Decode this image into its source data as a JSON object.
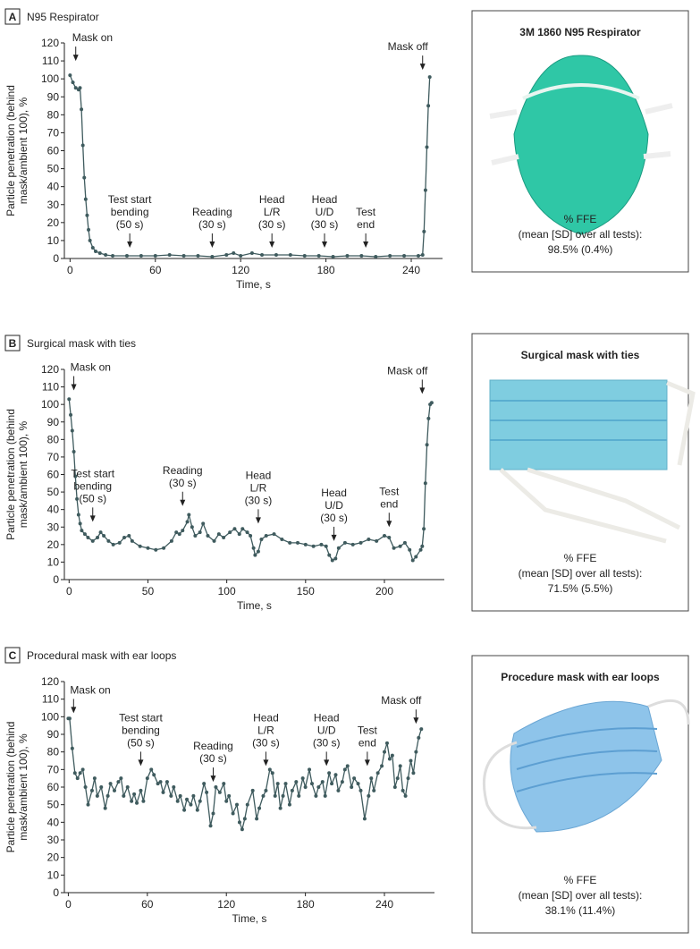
{
  "chart_data": [
    {
      "type": "line",
      "label": "A",
      "title": "N95 Respirator",
      "ylabel": [
        "Particle penetration (behind",
        "mask/ambient 100), %"
      ],
      "xlabel": "Time, s",
      "color": "#3f5b5e",
      "x": [
        0,
        2,
        4,
        6,
        7,
        8,
        9,
        10,
        11,
        12,
        13,
        14,
        16,
        18,
        21,
        25,
        30,
        40,
        50,
        60,
        70,
        80,
        90,
        100,
        110,
        115,
        120,
        128,
        135,
        145,
        155,
        165,
        175,
        185,
        195,
        205,
        215,
        225,
        235,
        245,
        248,
        249,
        250,
        251,
        252,
        253
      ],
      "values": [
        102,
        98,
        95,
        94,
        95,
        83,
        63,
        45,
        33,
        24,
        16,
        10,
        6,
        4,
        3,
        2,
        1.5,
        1.5,
        1.5,
        1.5,
        2,
        1.5,
        1.5,
        1,
        2,
        3,
        1.5,
        3,
        2,
        2,
        2,
        1.5,
        1.5,
        1,
        1.5,
        1.5,
        1,
        1.5,
        1.5,
        1.5,
        2,
        15,
        38,
        62,
        85,
        101
      ],
      "xlim": [
        -4,
        262
      ],
      "ylim": [
        0,
        120
      ],
      "xticks": [
        0,
        60,
        120,
        180,
        240
      ],
      "yticks": [
        0,
        10,
        20,
        30,
        40,
        50,
        60,
        70,
        80,
        90,
        100,
        110,
        120
      ],
      "annotations": [
        {
          "lines": [
            "Mask on"
          ],
          "x": 4,
          "y": 110
        },
        {
          "lines": [
            "Test start",
            "bending",
            "(50 s)"
          ],
          "x": 42,
          "y": 6
        },
        {
          "lines": [
            "Reading",
            "(30 s)"
          ],
          "x": 100,
          "y": 6
        },
        {
          "lines": [
            "Head",
            "L/R",
            "(30 s)"
          ],
          "x": 142,
          "y": 6
        },
        {
          "lines": [
            "Head",
            "U/D",
            "(30 s)"
          ],
          "x": 179,
          "y": 6
        },
        {
          "lines": [
            "Test",
            "end"
          ],
          "x": 208,
          "y": 6
        },
        {
          "lines": [
            "Mask off"
          ],
          "x": 248,
          "y": 105
        }
      ],
      "panel": {
        "title": "3M 1860 N95 Respirator",
        "ffe_label": "% FFE",
        "ffe_desc": "(mean [SD] over all tests):",
        "ffe_value": "98.5% (0.4%)"
      }
    },
    {
      "type": "line",
      "label": "B",
      "title": "Surgical mask with ties",
      "ylabel": [
        "Particle penetration (behind",
        "mask/ambient 100), %"
      ],
      "xlabel": "Time, s",
      "color": "#3f5b5e",
      "x": [
        0,
        1,
        2,
        3,
        4,
        5,
        6,
        7,
        8,
        10,
        12,
        15,
        18,
        20,
        22,
        25,
        28,
        32,
        35,
        38,
        40,
        45,
        50,
        55,
        60,
        65,
        68,
        70,
        72,
        75,
        76,
        78,
        80,
        83,
        85,
        88,
        92,
        95,
        98,
        102,
        105,
        108,
        110,
        113,
        115,
        117,
        118,
        120,
        122,
        125,
        130,
        135,
        140,
        145,
        150,
        155,
        160,
        163,
        165,
        167,
        169,
        171,
        175,
        180,
        185,
        190,
        195,
        200,
        203,
        206,
        210,
        213,
        216,
        218,
        220,
        223,
        224,
        225,
        226,
        227,
        228,
        229,
        230
      ],
      "values": [
        103,
        94,
        85,
        73,
        59,
        46,
        37,
        32,
        28,
        26,
        24,
        22,
        24,
        27,
        25,
        22,
        20,
        21,
        24,
        25,
        22,
        19,
        18,
        17,
        18,
        22,
        27,
        26,
        28,
        33,
        37,
        30,
        25,
        27,
        32,
        25,
        22,
        26,
        24,
        27,
        29,
        26,
        29,
        27,
        25,
        18,
        14,
        16,
        23,
        25,
        26,
        23,
        21,
        21,
        20,
        19,
        20,
        19,
        14,
        11,
        12,
        18,
        21,
        20,
        21,
        23,
        22,
        25,
        24,
        18,
        19,
        21,
        17,
        11,
        13,
        17,
        19,
        29,
        55,
        77,
        92,
        100,
        101
      ],
      "xlim": [
        -3,
        238
      ],
      "ylim": [
        0,
        120
      ],
      "xticks": [
        0,
        50,
        100,
        150,
        200
      ],
      "yticks": [
        0,
        10,
        20,
        30,
        40,
        50,
        60,
        70,
        80,
        90,
        100,
        110,
        120
      ],
      "annotations": [
        {
          "lines": [
            "Mask on"
          ],
          "x": 3,
          "y": 108
        },
        {
          "lines": [
            "Test start",
            "bending",
            "(50 s)"
          ],
          "x": 15,
          "y": 33
        },
        {
          "lines": [
            "Reading",
            "(30 s)"
          ],
          "x": 72,
          "y": 42
        },
        {
          "lines": [
            "Head",
            "L/R",
            "(30 s)"
          ],
          "x": 120,
          "y": 32
        },
        {
          "lines": [
            "Head",
            "U/D",
            "(30 s)"
          ],
          "x": 168,
          "y": 22
        },
        {
          "lines": [
            "Test",
            "end"
          ],
          "x": 203,
          "y": 30
        },
        {
          "lines": [
            "Mask off"
          ],
          "x": 224,
          "y": 106
        }
      ],
      "panel": {
        "title": "Surgical mask with ties",
        "ffe_label": "% FFE",
        "ffe_desc": "(mean [SD] over all tests):",
        "ffe_value": "71.5% (5.5%)"
      }
    },
    {
      "type": "line",
      "label": "C",
      "title": "Procedural mask with ear loops",
      "ylabel": [
        "Particle penetration (behind",
        "mask/ambient 100), %"
      ],
      "xlabel": "Time, s",
      "color": "#3f5b5e",
      "x": [
        0,
        1,
        3,
        5,
        7,
        9,
        11,
        13,
        15,
        18,
        20,
        22,
        25,
        28,
        30,
        32,
        35,
        38,
        40,
        42,
        45,
        48,
        50,
        52,
        55,
        57,
        60,
        63,
        65,
        68,
        70,
        72,
        75,
        78,
        80,
        83,
        85,
        88,
        90,
        93,
        95,
        98,
        100,
        103,
        105,
        108,
        110,
        112,
        115,
        118,
        120,
        122,
        125,
        128,
        130,
        132,
        134,
        136,
        140,
        143,
        145,
        148,
        150,
        153,
        155,
        157,
        159,
        161,
        163,
        165,
        168,
        170,
        173,
        175,
        178,
        180,
        183,
        185,
        188,
        190,
        193,
        195,
        198,
        200,
        203,
        205,
        208,
        210,
        212,
        215,
        217,
        220,
        222,
        225,
        228,
        230,
        232,
        235,
        238,
        240,
        242,
        244,
        246,
        248,
        250,
        252,
        254,
        256,
        258,
        260,
        262,
        264,
        266,
        268
      ],
      "values": [
        99,
        99,
        82,
        68,
        65,
        68,
        70,
        60,
        50,
        58,
        65,
        55,
        60,
        48,
        55,
        62,
        58,
        63,
        65,
        55,
        60,
        52,
        56,
        51,
        58,
        52,
        65,
        70,
        67,
        62,
        63,
        57,
        63,
        55,
        60,
        52,
        55,
        47,
        53,
        50,
        55,
        47,
        52,
        62,
        57,
        38,
        45,
        60,
        57,
        62,
        52,
        55,
        45,
        50,
        40,
        36,
        42,
        50,
        58,
        42,
        48,
        55,
        58,
        70,
        68,
        55,
        62,
        48,
        55,
        62,
        50,
        58,
        63,
        55,
        65,
        60,
        70,
        62,
        55,
        60,
        63,
        55,
        68,
        62,
        67,
        58,
        63,
        70,
        72,
        60,
        65,
        62,
        58,
        42,
        55,
        65,
        58,
        68,
        72,
        80,
        85,
        76,
        78,
        60,
        65,
        72,
        58,
        55,
        65,
        75,
        68,
        80,
        88,
        93
      ],
      "xlim": [
        -3,
        278
      ],
      "ylim": [
        0,
        120
      ],
      "xticks": [
        0,
        60,
        120,
        180,
        240
      ],
      "yticks": [
        0,
        10,
        20,
        30,
        40,
        50,
        60,
        70,
        80,
        90,
        100,
        110,
        120
      ],
      "annotations": [
        {
          "lines": [
            "Mask on"
          ],
          "x": 4,
          "y": 102
        },
        {
          "lines": [
            "Test start",
            "bending",
            "(50 s)"
          ],
          "x": 55,
          "y": 72
        },
        {
          "lines": [
            "Reading",
            "(30 s)"
          ],
          "x": 110,
          "y": 63
        },
        {
          "lines": [
            "Head",
            "L/R",
            "(30 s)"
          ],
          "x": 150,
          "y": 72
        },
        {
          "lines": [
            "Head",
            "U/D",
            "(30 s)"
          ],
          "x": 196,
          "y": 72
        },
        {
          "lines": [
            "Test",
            "end"
          ],
          "x": 227,
          "y": 72
        },
        {
          "lines": [
            "Mask off"
          ],
          "x": 264,
          "y": 96
        }
      ],
      "panel": {
        "title": "Procedure mask with ear loops",
        "ffe_label": "% FFE",
        "ffe_desc": "(mean [SD] over all tests):",
        "ffe_value": "38.1% (11.4%)"
      }
    }
  ]
}
